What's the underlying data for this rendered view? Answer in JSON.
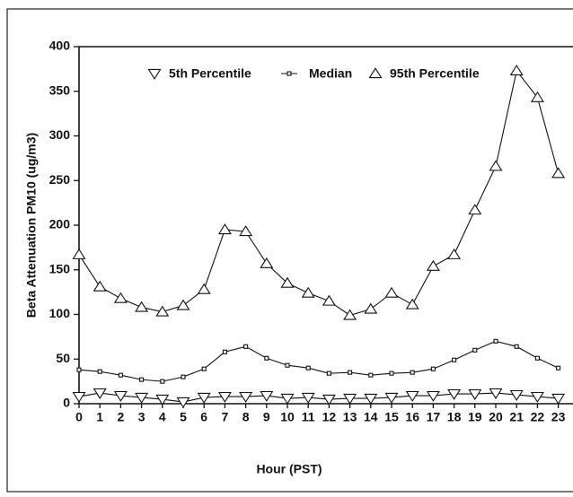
{
  "chart_data": {
    "type": "line",
    "xlabel": "Hour (PST)",
    "ylabel": "Beta Attenuation PM10 (ug/m3)",
    "categories": [
      "0",
      "1",
      "2",
      "3",
      "4",
      "5",
      "6",
      "7",
      "8",
      "9",
      "10",
      "11",
      "12",
      "13",
      "14",
      "15",
      "16",
      "17",
      "18",
      "19",
      "20",
      "21",
      "22",
      "23"
    ],
    "series": [
      {
        "name": "5th Percentile",
        "color": "#111111",
        "marker": "triangle-down",
        "values": [
          8,
          12,
          9,
          7,
          5,
          2,
          7,
          8,
          8,
          9,
          6,
          7,
          5,
          6,
          6,
          7,
          9,
          9,
          11,
          11,
          12,
          10,
          8,
          6
        ]
      },
      {
        "name": "Median",
        "color": "#111111",
        "marker": "square",
        "values": [
          38,
          36,
          32,
          27,
          25,
          30,
          39,
          58,
          64,
          51,
          43,
          40,
          34,
          35,
          32,
          34,
          35,
          39,
          49,
          60,
          70,
          64,
          51,
          40
        ]
      },
      {
        "name": "95th Percentile",
        "color": "#111111",
        "marker": "triangle-up",
        "values": [
          167,
          131,
          118,
          108,
          103,
          110,
          128,
          195,
          193,
          157,
          135,
          124,
          115,
          99,
          106,
          124,
          111,
          154,
          167,
          217,
          266,
          373,
          343,
          258
        ]
      }
    ],
    "ylim": [
      0,
      400
    ],
    "yticks": [
      0,
      50,
      100,
      150,
      200,
      250,
      300,
      350,
      400
    ],
    "legend": "top"
  }
}
